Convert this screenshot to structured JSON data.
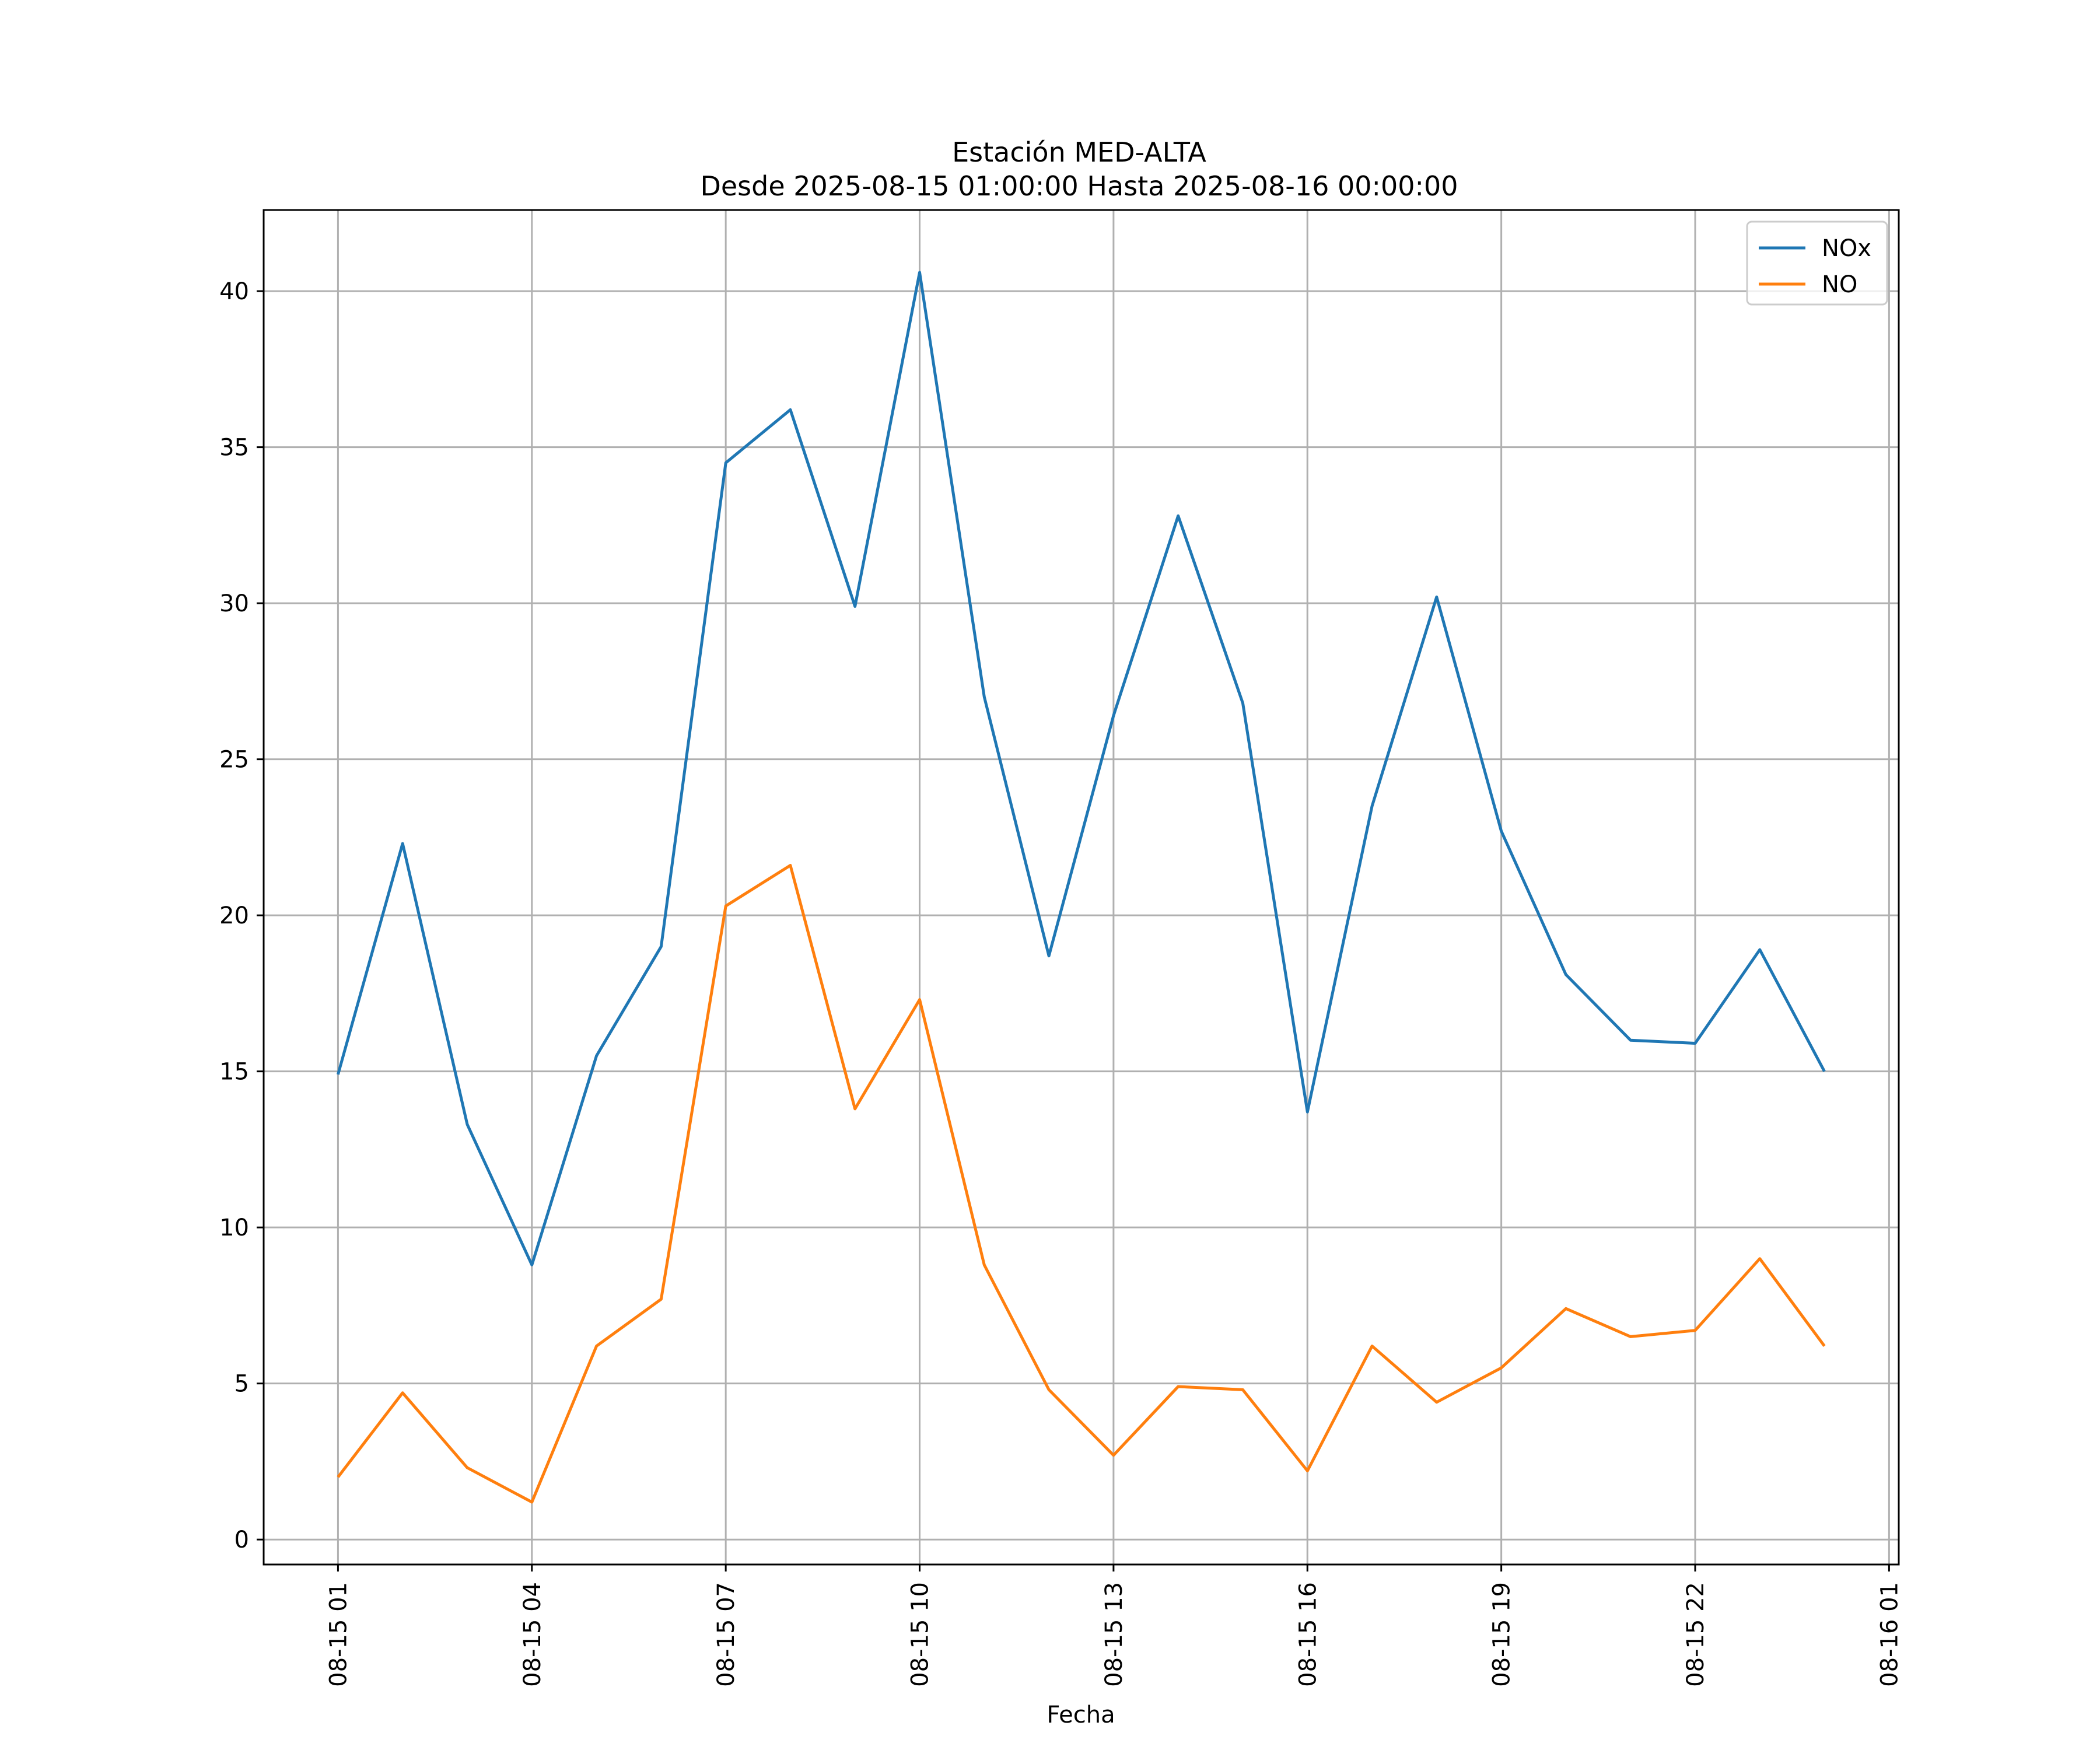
{
  "chart_data": {
    "type": "line",
    "title": "Estación MED-ALTA",
    "subtitle": "Desde 2025-08-15 01:00:00 Hasta 2025-08-16 00:00:00",
    "xlabel": "Fecha",
    "ylabel": "",
    "x": [
      "08-15 01",
      "08-15 02",
      "08-15 03",
      "08-15 04",
      "08-15 05",
      "08-15 06",
      "08-15 07",
      "08-15 08",
      "08-15 09",
      "08-15 10",
      "08-15 11",
      "08-15 12",
      "08-15 13",
      "08-15 14",
      "08-15 15",
      "08-15 16",
      "08-15 17",
      "08-15 18",
      "08-15 19",
      "08-15 20",
      "08-15 21",
      "08-15 22",
      "08-15 23",
      "08-16 00"
    ],
    "x_hours": [
      1,
      2,
      3,
      4,
      5,
      6,
      7,
      8,
      9,
      10,
      11,
      12,
      13,
      14,
      15,
      16,
      17,
      18,
      19,
      20,
      21,
      22,
      23,
      24
    ],
    "xlim_hours": [
      -0.15,
      25.15
    ],
    "x_ticks": [
      {
        "hour": 1,
        "label": "08-15 01"
      },
      {
        "hour": 4,
        "label": "08-15 04"
      },
      {
        "hour": 7,
        "label": "08-15 07"
      },
      {
        "hour": 10,
        "label": "08-15 10"
      },
      {
        "hour": 13,
        "label": "08-15 13"
      },
      {
        "hour": 16,
        "label": "08-15 16"
      },
      {
        "hour": 19,
        "label": "08-15 19"
      },
      {
        "hour": 22,
        "label": "08-15 22"
      },
      {
        "hour": 25,
        "label": "08-16 01"
      }
    ],
    "ylim": [
      -0.8,
      42.6
    ],
    "y_ticks": [
      0,
      5,
      10,
      15,
      20,
      25,
      30,
      35,
      40
    ],
    "grid": true,
    "legend_position": "top-right",
    "series": [
      {
        "name": "NOx",
        "color": "#1f77b4",
        "values": [
          14.9,
          22.3,
          13.3,
          8.8,
          15.5,
          19.0,
          34.5,
          36.2,
          29.9,
          40.6,
          27.0,
          18.7,
          26.4,
          32.8,
          26.8,
          13.7,
          23.5,
          30.2,
          22.7,
          18.1,
          16.0,
          15.9,
          18.9,
          15.0
        ]
      },
      {
        "name": "NO",
        "color": "#ff7f0e",
        "values": [
          2.0,
          4.7,
          2.3,
          1.2,
          6.2,
          7.7,
          20.3,
          21.6,
          13.8,
          17.3,
          8.8,
          4.8,
          2.7,
          4.9,
          4.8,
          2.2,
          6.2,
          4.4,
          5.5,
          7.4,
          6.5,
          6.7,
          9.0,
          6.2
        ]
      }
    ]
  }
}
